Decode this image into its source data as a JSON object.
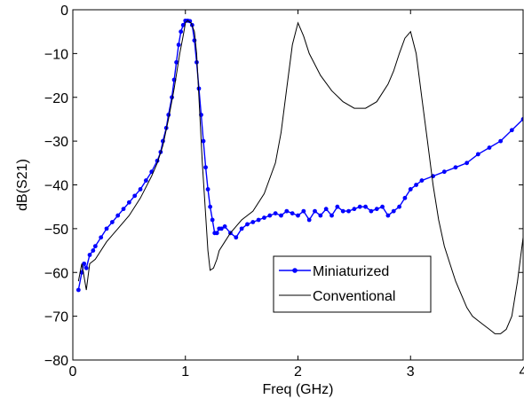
{
  "chart_data": {
    "type": "line",
    "xlabel": "Freq (GHz)",
    "ylabel": "dB(S21)",
    "xlim": [
      0,
      4
    ],
    "ylim": [
      -80,
      0
    ],
    "xticks": [
      "0",
      "1",
      "2",
      "3",
      "4"
    ],
    "yticks": [
      "0",
      "−10",
      "−20",
      "−30",
      "−40",
      "−50",
      "−60",
      "−70",
      "−80"
    ],
    "ytick_values": [
      0,
      -10,
      -20,
      -30,
      -40,
      -50,
      -60,
      -70,
      -80
    ],
    "xtick_values": [
      0,
      1,
      2,
      3,
      4
    ],
    "grid": false,
    "legend_position": "lower-center",
    "series": [
      {
        "name": "Miniaturized",
        "color": "#0000ff",
        "marker": "dot",
        "x": [
          0.05,
          0.08,
          0.1,
          0.12,
          0.15,
          0.18,
          0.2,
          0.25,
          0.3,
          0.35,
          0.4,
          0.45,
          0.5,
          0.55,
          0.6,
          0.65,
          0.7,
          0.75,
          0.78,
          0.8,
          0.83,
          0.85,
          0.88,
          0.9,
          0.92,
          0.94,
          0.96,
          0.98,
          1.0,
          1.02,
          1.04,
          1.06,
          1.08,
          1.1,
          1.12,
          1.14,
          1.16,
          1.18,
          1.2,
          1.22,
          1.24,
          1.26,
          1.28,
          1.3,
          1.32,
          1.35,
          1.4,
          1.45,
          1.5,
          1.55,
          1.6,
          1.65,
          1.7,
          1.75,
          1.8,
          1.85,
          1.9,
          1.95,
          2.0,
          2.05,
          2.1,
          2.15,
          2.2,
          2.25,
          2.3,
          2.35,
          2.4,
          2.45,
          2.5,
          2.55,
          2.6,
          2.65,
          2.7,
          2.75,
          2.8,
          2.85,
          2.9,
          2.95,
          3.0,
          3.05,
          3.1,
          3.2,
          3.3,
          3.4,
          3.5,
          3.6,
          3.7,
          3.8,
          3.9,
          4.0
        ],
        "y": [
          -64,
          -60,
          -58,
          -59,
          -56,
          -55,
          -54,
          -52,
          -50,
          -48.5,
          -47,
          -45.5,
          -44,
          -42.5,
          -41,
          -39,
          -37,
          -34.5,
          -32.5,
          -30,
          -27,
          -24,
          -20,
          -16,
          -12,
          -8,
          -5,
          -3.5,
          -2.5,
          -2.5,
          -2.6,
          -3.5,
          -7,
          -12,
          -18,
          -24,
          -30,
          -36,
          -41,
          -45,
          -48,
          -51,
          -51,
          -50,
          -50,
          -49.5,
          -51,
          -52,
          -50,
          -49,
          -48.5,
          -48,
          -47.5,
          -47,
          -46.5,
          -47,
          -46,
          -46.5,
          -47,
          -46,
          -48,
          -46,
          -47,
          -45.5,
          -47,
          -45,
          -46,
          -46,
          -45.5,
          -45,
          -45,
          -46,
          -45.5,
          -45,
          -47,
          -46,
          -45,
          -43,
          -41,
          -40,
          -39,
          -38,
          -37,
          -36,
          -35,
          -33,
          -31.5,
          -30,
          -27.5,
          -25
        ]
      },
      {
        "name": "Conventional",
        "color": "#000000",
        "marker": "none",
        "x": [
          0.05,
          0.08,
          0.1,
          0.12,
          0.15,
          0.2,
          0.3,
          0.4,
          0.5,
          0.6,
          0.7,
          0.75,
          0.8,
          0.85,
          0.9,
          0.95,
          0.98,
          1.0,
          1.02,
          1.05,
          1.08,
          1.1,
          1.12,
          1.15,
          1.18,
          1.2,
          1.22,
          1.25,
          1.28,
          1.3,
          1.35,
          1.4,
          1.5,
          1.6,
          1.7,
          1.8,
          1.85,
          1.9,
          1.95,
          2.0,
          2.05,
          2.1,
          2.2,
          2.3,
          2.4,
          2.5,
          2.6,
          2.7,
          2.8,
          2.85,
          2.9,
          2.95,
          3.0,
          3.05,
          3.1,
          3.15,
          3.2,
          3.25,
          3.3,
          3.35,
          3.4,
          3.45,
          3.5,
          3.55,
          3.6,
          3.65,
          3.7,
          3.75,
          3.8,
          3.85,
          3.9,
          3.95,
          4.0
        ],
        "y": [
          -62,
          -58,
          -61,
          -64,
          -58,
          -57,
          -53,
          -50,
          -47,
          -43,
          -38,
          -35,
          -31,
          -25,
          -18,
          -10,
          -6,
          -3,
          -2.5,
          -3,
          -5,
          -10,
          -20,
          -35,
          -47,
          -55,
          -59.5,
          -59,
          -57,
          -55,
          -53,
          -51,
          -48,
          -46,
          -42,
          -35,
          -28,
          -18,
          -8,
          -3,
          -6,
          -10,
          -15,
          -18.5,
          -21,
          -22.5,
          -22.5,
          -21,
          -17,
          -14,
          -10,
          -6.5,
          -5,
          -10,
          -20,
          -30,
          -40,
          -48,
          -54,
          -58,
          -62,
          -65,
          -68,
          -70,
          -71,
          -72,
          -73,
          -74,
          -74,
          -73,
          -70,
          -62,
          -52
        ]
      }
    ]
  }
}
